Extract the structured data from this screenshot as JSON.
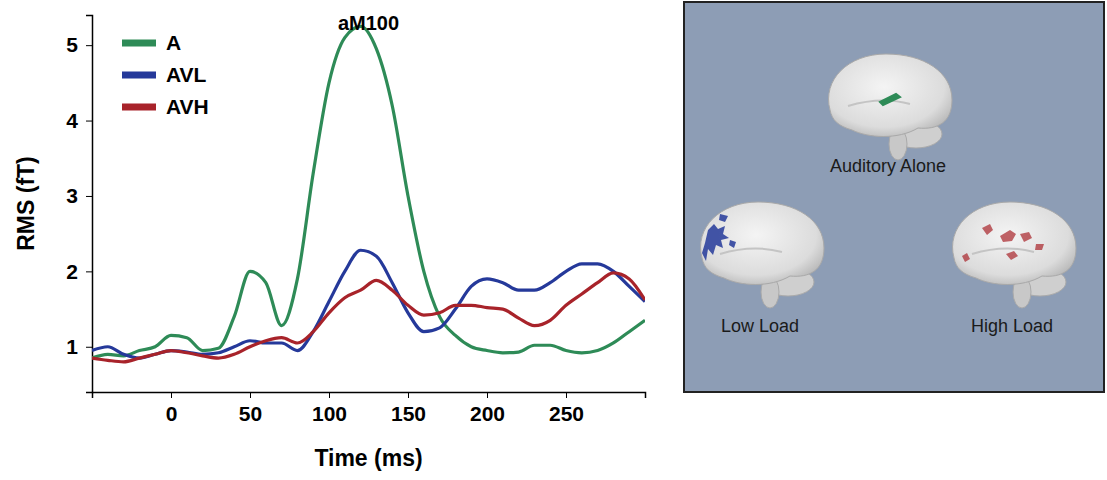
{
  "chart_data": {
    "type": "line",
    "x_label": "Time (ms)",
    "y_label": "RMS (fT)",
    "x": [
      -50,
      -40,
      -30,
      -20,
      -10,
      0,
      10,
      20,
      30,
      40,
      50,
      60,
      70,
      80,
      90,
      100,
      110,
      120,
      130,
      140,
      150,
      160,
      170,
      180,
      190,
      200,
      210,
      220,
      230,
      240,
      250,
      260,
      270,
      280,
      290,
      300
    ],
    "series": [
      {
        "name": "A",
        "color": "#2e8b57",
        "values": [
          0.85,
          0.9,
          0.88,
          0.95,
          1.0,
          1.15,
          1.12,
          0.95,
          0.98,
          1.4,
          2.0,
          1.85,
          1.28,
          1.9,
          3.3,
          4.5,
          5.1,
          5.25,
          4.95,
          4.2,
          3.0,
          2.0,
          1.4,
          1.15,
          1.0,
          0.95,
          0.92,
          0.93,
          1.02,
          1.02,
          0.95,
          0.92,
          0.95,
          1.05,
          1.2,
          1.35
        ]
      },
      {
        "name": "AVL",
        "color": "#25399a",
        "values": [
          0.95,
          1.0,
          0.9,
          0.85,
          0.9,
          0.95,
          0.93,
          0.9,
          0.92,
          1.0,
          1.08,
          1.05,
          1.05,
          0.95,
          1.2,
          1.6,
          2.0,
          2.28,
          2.2,
          1.85,
          1.45,
          1.2,
          1.25,
          1.5,
          1.8,
          1.9,
          1.85,
          1.75,
          1.75,
          1.85,
          2.0,
          2.1,
          2.1,
          2.0,
          1.8,
          1.6
        ]
      },
      {
        "name": "AVH",
        "color": "#a8232a",
        "values": [
          0.85,
          0.82,
          0.8,
          0.85,
          0.9,
          0.95,
          0.92,
          0.88,
          0.85,
          0.9,
          1.0,
          1.08,
          1.12,
          1.05,
          1.2,
          1.45,
          1.65,
          1.75,
          1.88,
          1.75,
          1.55,
          1.42,
          1.45,
          1.55,
          1.55,
          1.52,
          1.5,
          1.38,
          1.28,
          1.35,
          1.55,
          1.7,
          1.85,
          1.98,
          1.9,
          1.62
        ]
      }
    ],
    "xlim": [
      -50,
      300
    ],
    "ylim": [
      0.4,
      5.4
    ],
    "xticks": [
      0,
      50,
      100,
      150,
      200,
      250
    ],
    "yticks": [
      1,
      2,
      3,
      4,
      5
    ],
    "legend": "upper left",
    "annotations": [
      {
        "text": "aM100",
        "x": 125,
        "y": 5.15
      }
    ]
  },
  "brain_panel": {
    "labels": [
      "Auditory Alone",
      "Low Load",
      "High Load"
    ]
  }
}
